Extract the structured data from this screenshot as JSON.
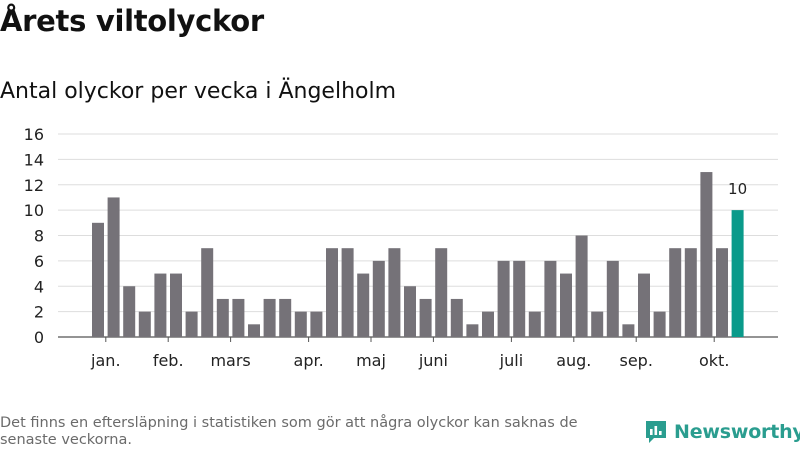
{
  "header": {
    "title": "Årets viltolyckor",
    "subtitle": "Antal olyckor per vecka i Ängelholm"
  },
  "footer": {
    "note": "Det finns en eftersläpning i statistiken som gör att några olyckor kan saknas de senaste veckorna.",
    "brand": "Newsworthy"
  },
  "colors": {
    "bar": "#757278",
    "highlight": "#0a9a8a",
    "grid": "#dddddd",
    "axis": "#555555",
    "brand": "#2a9d8f"
  },
  "chart_data": {
    "type": "bar",
    "title": "Antal olyckor per vecka i Ängelholm",
    "xlabel": "",
    "ylabel": "",
    "ylim": [
      0,
      16
    ],
    "yticks": [
      0,
      2,
      4,
      6,
      8,
      10,
      12,
      14,
      16
    ],
    "grid": true,
    "values": [
      9,
      11,
      4,
      2,
      5,
      5,
      2,
      7,
      3,
      3,
      1,
      3,
      3,
      2,
      2,
      7,
      7,
      5,
      6,
      7,
      4,
      3,
      7,
      3,
      1,
      2,
      6,
      6,
      2,
      6,
      5,
      8,
      2,
      6,
      1,
      5,
      2,
      7,
      7,
      13,
      7,
      10
    ],
    "highlight_index": 41,
    "highlight_label": "10",
    "month_labels": [
      {
        "label": "jan.",
        "index": 0.5
      },
      {
        "label": "feb.",
        "index": 4.5
      },
      {
        "label": "mars",
        "index": 8.5
      },
      {
        "label": "apr.",
        "index": 13.5
      },
      {
        "label": "maj",
        "index": 17.5
      },
      {
        "label": "juni",
        "index": 21.5
      },
      {
        "label": "juli",
        "index": 26.5
      },
      {
        "label": "aug.",
        "index": 30.5
      },
      {
        "label": "sep.",
        "index": 34.5
      },
      {
        "label": "okt.",
        "index": 39.5
      }
    ]
  }
}
